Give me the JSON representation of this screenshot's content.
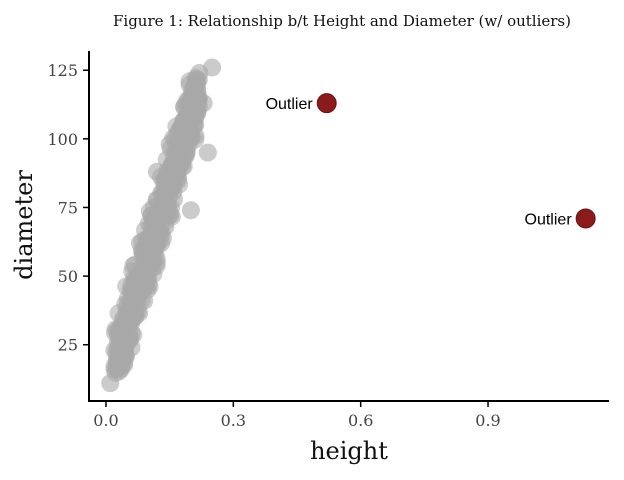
{
  "chart_data": {
    "type": "scatter",
    "title": "Figure 1: Relationship b/t Height and Diameter (w/ outliers)",
    "xlabel": "height",
    "ylabel": "diameter",
    "xlim": [
      -0.04,
      1.185
    ],
    "ylim": [
      4.5,
      132
    ],
    "xticks": [
      0.0,
      0.3,
      0.6,
      0.9
    ],
    "xtick_labels": [
      "0.0",
      "0.3",
      "0.6",
      "0.9"
    ],
    "yticks": [
      25,
      50,
      75,
      100,
      125
    ],
    "ytick_labels": [
      "25",
      "50",
      "75",
      "100",
      "125"
    ],
    "grid": false,
    "colors": {
      "points": "#a8a8a8",
      "outliers": "#8b1a1a"
    },
    "cluster_trend": {
      "slope": 500,
      "intercept": 8,
      "spread": 7
    },
    "points": [
      [
        0.01,
        11
      ],
      [
        0.02,
        23
      ],
      [
        0.025,
        19
      ],
      [
        0.03,
        22
      ],
      [
        0.035,
        29
      ],
      [
        0.04,
        31
      ],
      [
        0.045,
        26
      ],
      [
        0.05,
        34
      ],
      [
        0.055,
        33
      ],
      [
        0.06,
        38
      ],
      [
        0.06,
        24
      ],
      [
        0.065,
        44
      ],
      [
        0.07,
        40
      ],
      [
        0.075,
        37
      ],
      [
        0.08,
        45
      ],
      [
        0.085,
        50
      ],
      [
        0.09,
        52
      ],
      [
        0.09,
        41
      ],
      [
        0.095,
        48
      ],
      [
        0.1,
        56
      ],
      [
        0.1,
        47
      ],
      [
        0.105,
        62
      ],
      [
        0.11,
        60
      ],
      [
        0.11,
        53
      ],
      [
        0.115,
        58
      ],
      [
        0.12,
        67
      ],
      [
        0.12,
        55
      ],
      [
        0.125,
        66
      ],
      [
        0.13,
        71
      ],
      [
        0.13,
        62
      ],
      [
        0.135,
        74
      ],
      [
        0.14,
        78
      ],
      [
        0.14,
        68
      ],
      [
        0.145,
        76
      ],
      [
        0.15,
        84
      ],
      [
        0.15,
        72
      ],
      [
        0.155,
        82
      ],
      [
        0.16,
        88
      ],
      [
        0.16,
        78
      ],
      [
        0.165,
        90
      ],
      [
        0.17,
        96
      ],
      [
        0.17,
        85
      ],
      [
        0.175,
        93
      ],
      [
        0.18,
        103
      ],
      [
        0.18,
        90
      ],
      [
        0.185,
        99
      ],
      [
        0.19,
        108
      ],
      [
        0.19,
        95
      ],
      [
        0.195,
        106
      ],
      [
        0.2,
        115
      ],
      [
        0.2,
        101
      ],
      [
        0.205,
        112
      ],
      [
        0.21,
        120
      ],
      [
        0.21,
        105
      ],
      [
        0.215,
        118
      ],
      [
        0.22,
        124
      ],
      [
        0.23,
        113
      ],
      [
        0.24,
        95
      ],
      [
        0.25,
        126
      ],
      [
        0.2,
        74
      ],
      [
        0.15,
        98
      ],
      [
        0.12,
        88
      ],
      [
        0.08,
        62
      ]
    ],
    "outliers": [
      {
        "x": 0.52,
        "y": 113,
        "label": "Outlier"
      },
      {
        "x": 1.13,
        "y": 71,
        "label": "Outlier"
      }
    ]
  }
}
